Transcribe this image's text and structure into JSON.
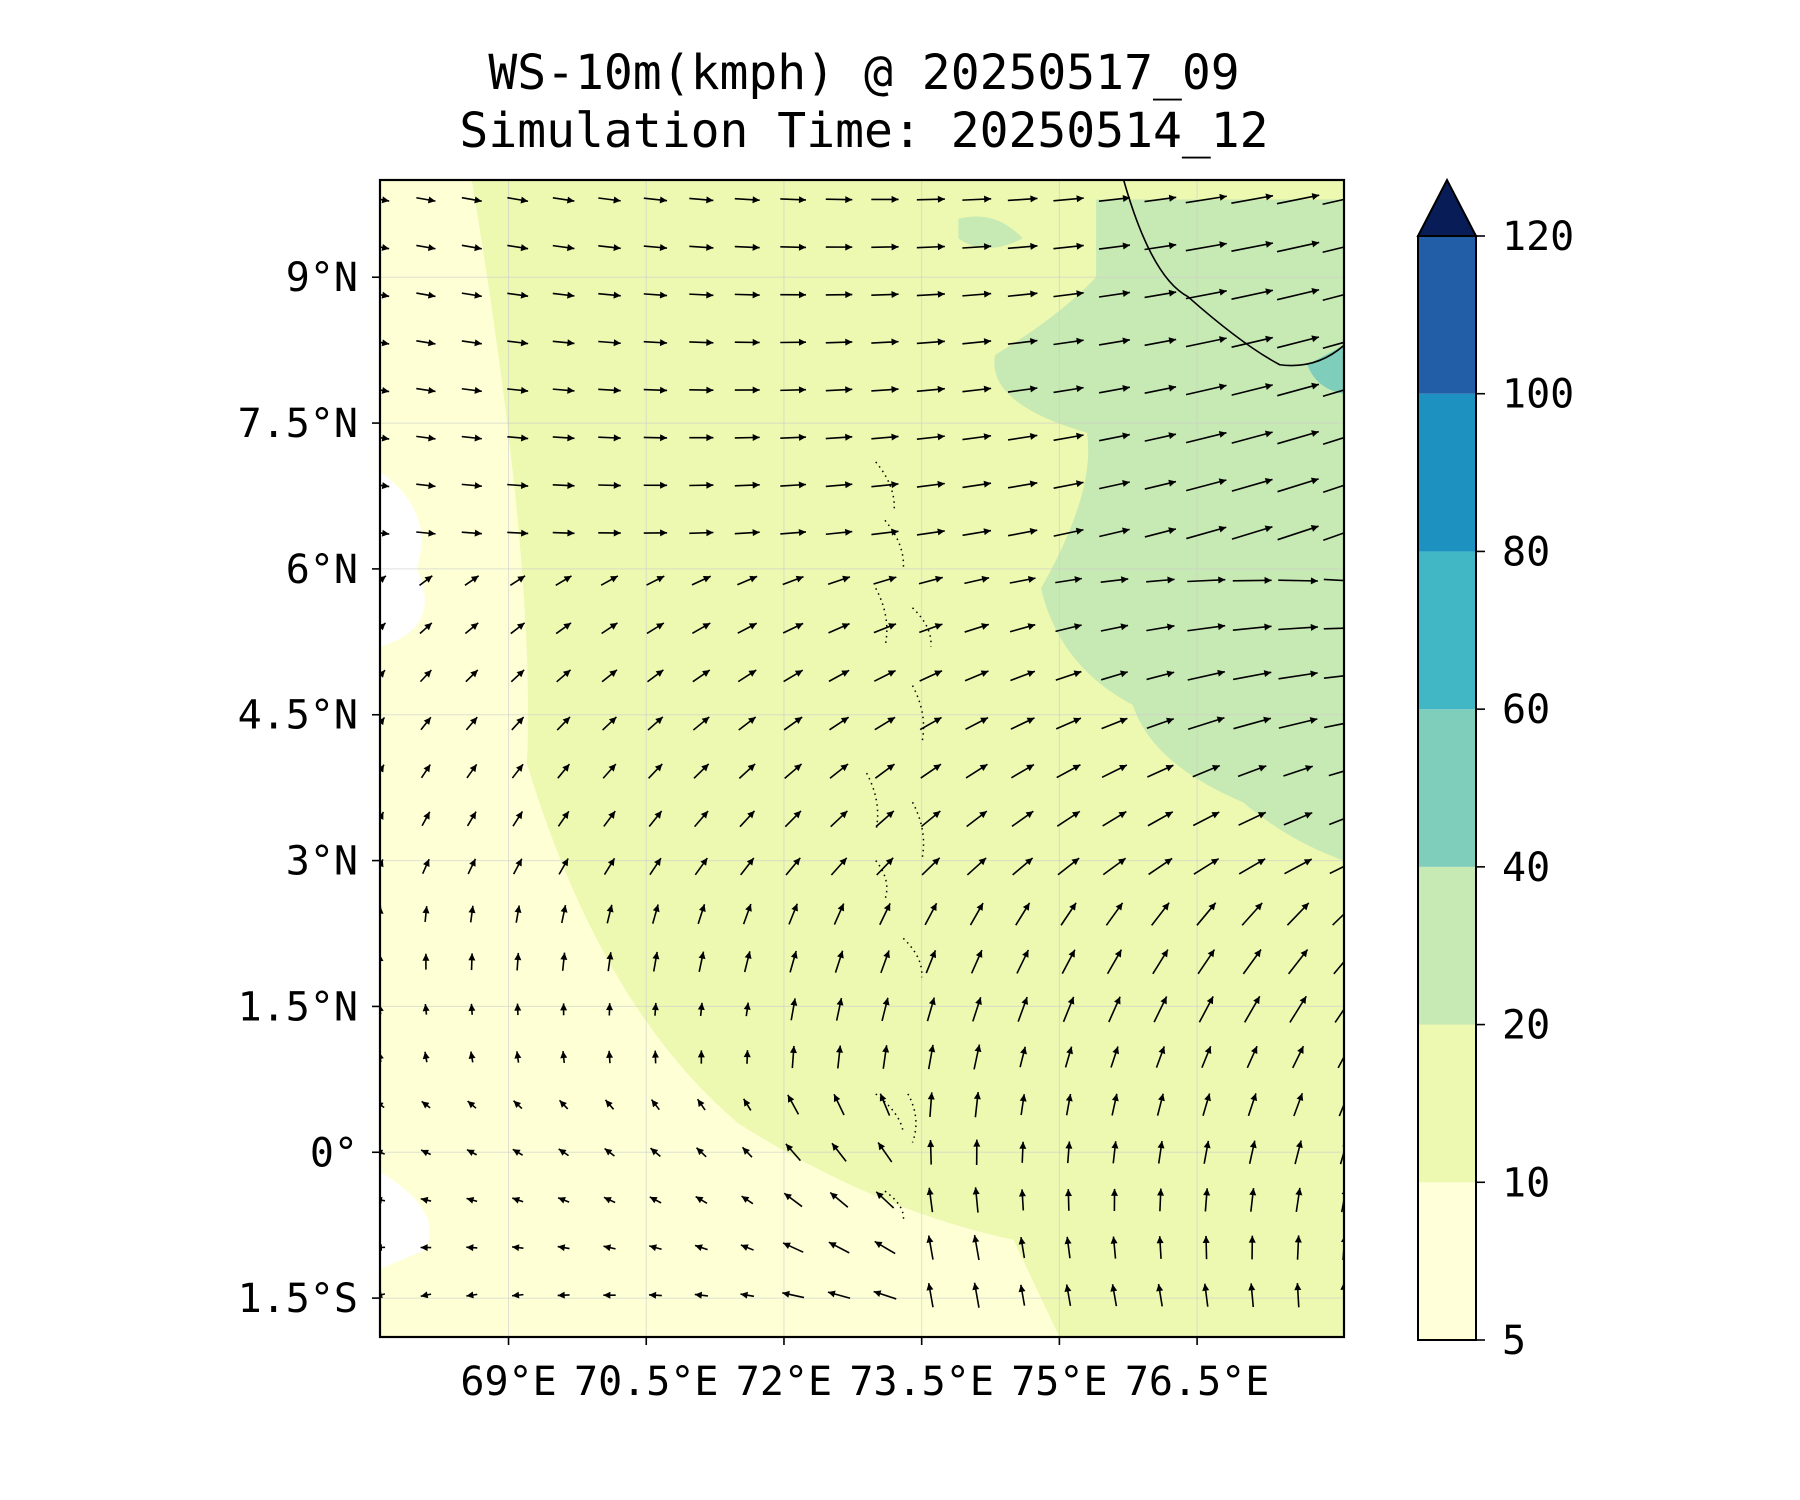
{
  "title": {
    "line1": "WS-10m(kmph) @ 20250517_09",
    "line2": "Simulation Time: 20250514_12"
  },
  "map": {
    "lon_range": [
      67.6,
      78.1
    ],
    "lat_range": [
      -1.9,
      10.0
    ],
    "lon_ticks": [
      {
        "value": 69.0,
        "label": "69°E"
      },
      {
        "value": 70.5,
        "label": "70.5°E"
      },
      {
        "value": 72.0,
        "label": "72°E"
      },
      {
        "value": 73.5,
        "label": "73.5°E"
      },
      {
        "value": 75.0,
        "label": "75°E"
      },
      {
        "value": 76.5,
        "label": "76.5°E"
      }
    ],
    "lat_ticks": [
      {
        "value": 9.0,
        "label": "9°N"
      },
      {
        "value": 7.5,
        "label": "7.5°N"
      },
      {
        "value": 6.0,
        "label": "6°N"
      },
      {
        "value": 4.5,
        "label": "4.5°N"
      },
      {
        "value": 3.0,
        "label": "3°N"
      },
      {
        "value": 1.5,
        "label": "1.5°N"
      },
      {
        "value": 0.0,
        "label": "0°"
      },
      {
        "value": -1.5,
        "label": "1.5°S"
      }
    ],
    "gridlines": true,
    "field": "wind speed at 10 m (kmph)",
    "zones": {
      "calm_lon_max": 68.6,
      "moderate_lon_min": 74.8,
      "moderate_lat_range": [
        3.0,
        9.8
      ]
    }
  },
  "colorbar": {
    "levels": [
      5,
      10,
      20,
      40,
      60,
      80,
      100,
      120
    ],
    "colors": [
      "#ffffd9",
      "#edf8b1",
      "#c7e9b4",
      "#7fcdbb",
      "#41b6c4",
      "#1d91c0",
      "#225ea8",
      "#0c2c84"
    ],
    "extend_color": "#081d58",
    "extend": "max"
  },
  "colors": {
    "land_outline": "#000000",
    "arrow": "#000000",
    "grid": "#cccccc"
  }
}
